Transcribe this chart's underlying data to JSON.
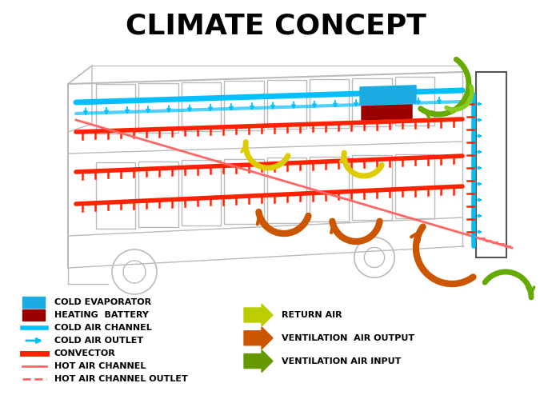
{
  "title": "CLIMATE CONCEPT",
  "title_fontsize": 26,
  "title_fontweight": "bold",
  "background_color": "#ffffff",
  "bus_color": "#BBBBBB",
  "bus_lw": 1.0,
  "cold_color": "#00BFFF",
  "hot_color": "#FF2200",
  "hot_thin_color": "#FF6666",
  "evap_color": "#1AABE0",
  "heat_color": "#9B0000",
  "green_color": "#66AA00",
  "yellow_color": "#DDCC00",
  "orange_color": "#CC5500",
  "legend_items_left": [
    {
      "label": "COLD EVAPORATOR",
      "type": "rect",
      "color": "#1AABE0"
    },
    {
      "label": "HEATING  BATTERY",
      "type": "rect",
      "color": "#9B0000"
    },
    {
      "label": "COLD AIR CHANNEL",
      "type": "line",
      "color": "#00BFFF",
      "lw": 4
    },
    {
      "label": "COLD AIR OUTLET",
      "type": "arrow_small",
      "color": "#00BFFF"
    },
    {
      "label": "CONVECTOR",
      "type": "line",
      "color": "#FF2200",
      "lw": 5
    },
    {
      "label": "HOT AIR CHANNEL",
      "type": "line",
      "color": "#FF6666",
      "lw": 2
    },
    {
      "label": "HOT AIR CHANNEL OUTLET",
      "type": "dash",
      "color": "#FF6666"
    }
  ],
  "legend_items_right": [
    {
      "label": "RETURN AIR",
      "color": "#BBCC00"
    },
    {
      "label": "VENTILATION  AIR OUTPUT",
      "color": "#CC5500"
    },
    {
      "label": "VENTILATION AIR INPUT",
      "color": "#669900"
    }
  ]
}
